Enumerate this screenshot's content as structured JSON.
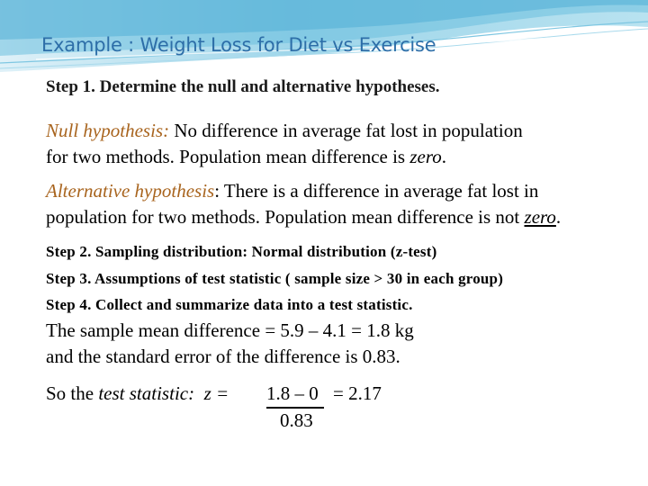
{
  "slide": {
    "title": "Example : Weight Loss for Diet vs Exercise",
    "step1": "Step 1. Determine the null and alternative hypotheses.",
    "null_hypothesis": {
      "label": "Null hypothesis:",
      "line1_text": " No difference in average fat lost in population",
      "line2_text": "for two methods. Population mean difference is ",
      "emphasis": "zero",
      "end": "."
    },
    "alternative_hypothesis": {
      "label": "Alternative hypothesis",
      "colon": ":",
      "line1_text": " There is a difference in average fat lost in",
      "line2_text": "population for two methods. Population mean difference is not ",
      "emphasis": "zero",
      "end": "."
    },
    "step2": "Step 2. Sampling distribution: Normal distribution (z-test)",
    "step3": "Step 3. Assumptions of test statistic ( sample size > 30 in each group)",
    "step4": "Step 4. Collect and summarize data into a test statistic.",
    "mean_line1": "The sample mean difference = 5.9 – 4.1 = 1.8 kg",
    "mean_line2": "and the standard error of the difference is 0.83.",
    "test_statistic": {
      "prefix": "So the ",
      "label": "test statistic:",
      "eq": "  z =  ",
      "numerator": "1.8 – 0",
      "denominator": "0.83",
      "result": "= 2.17"
    },
    "colors": {
      "title": "#2d6ea8",
      "highlight": "#a8641e",
      "wave_dark": "#5fb6d9",
      "wave_light": "#bfe3f1"
    }
  }
}
